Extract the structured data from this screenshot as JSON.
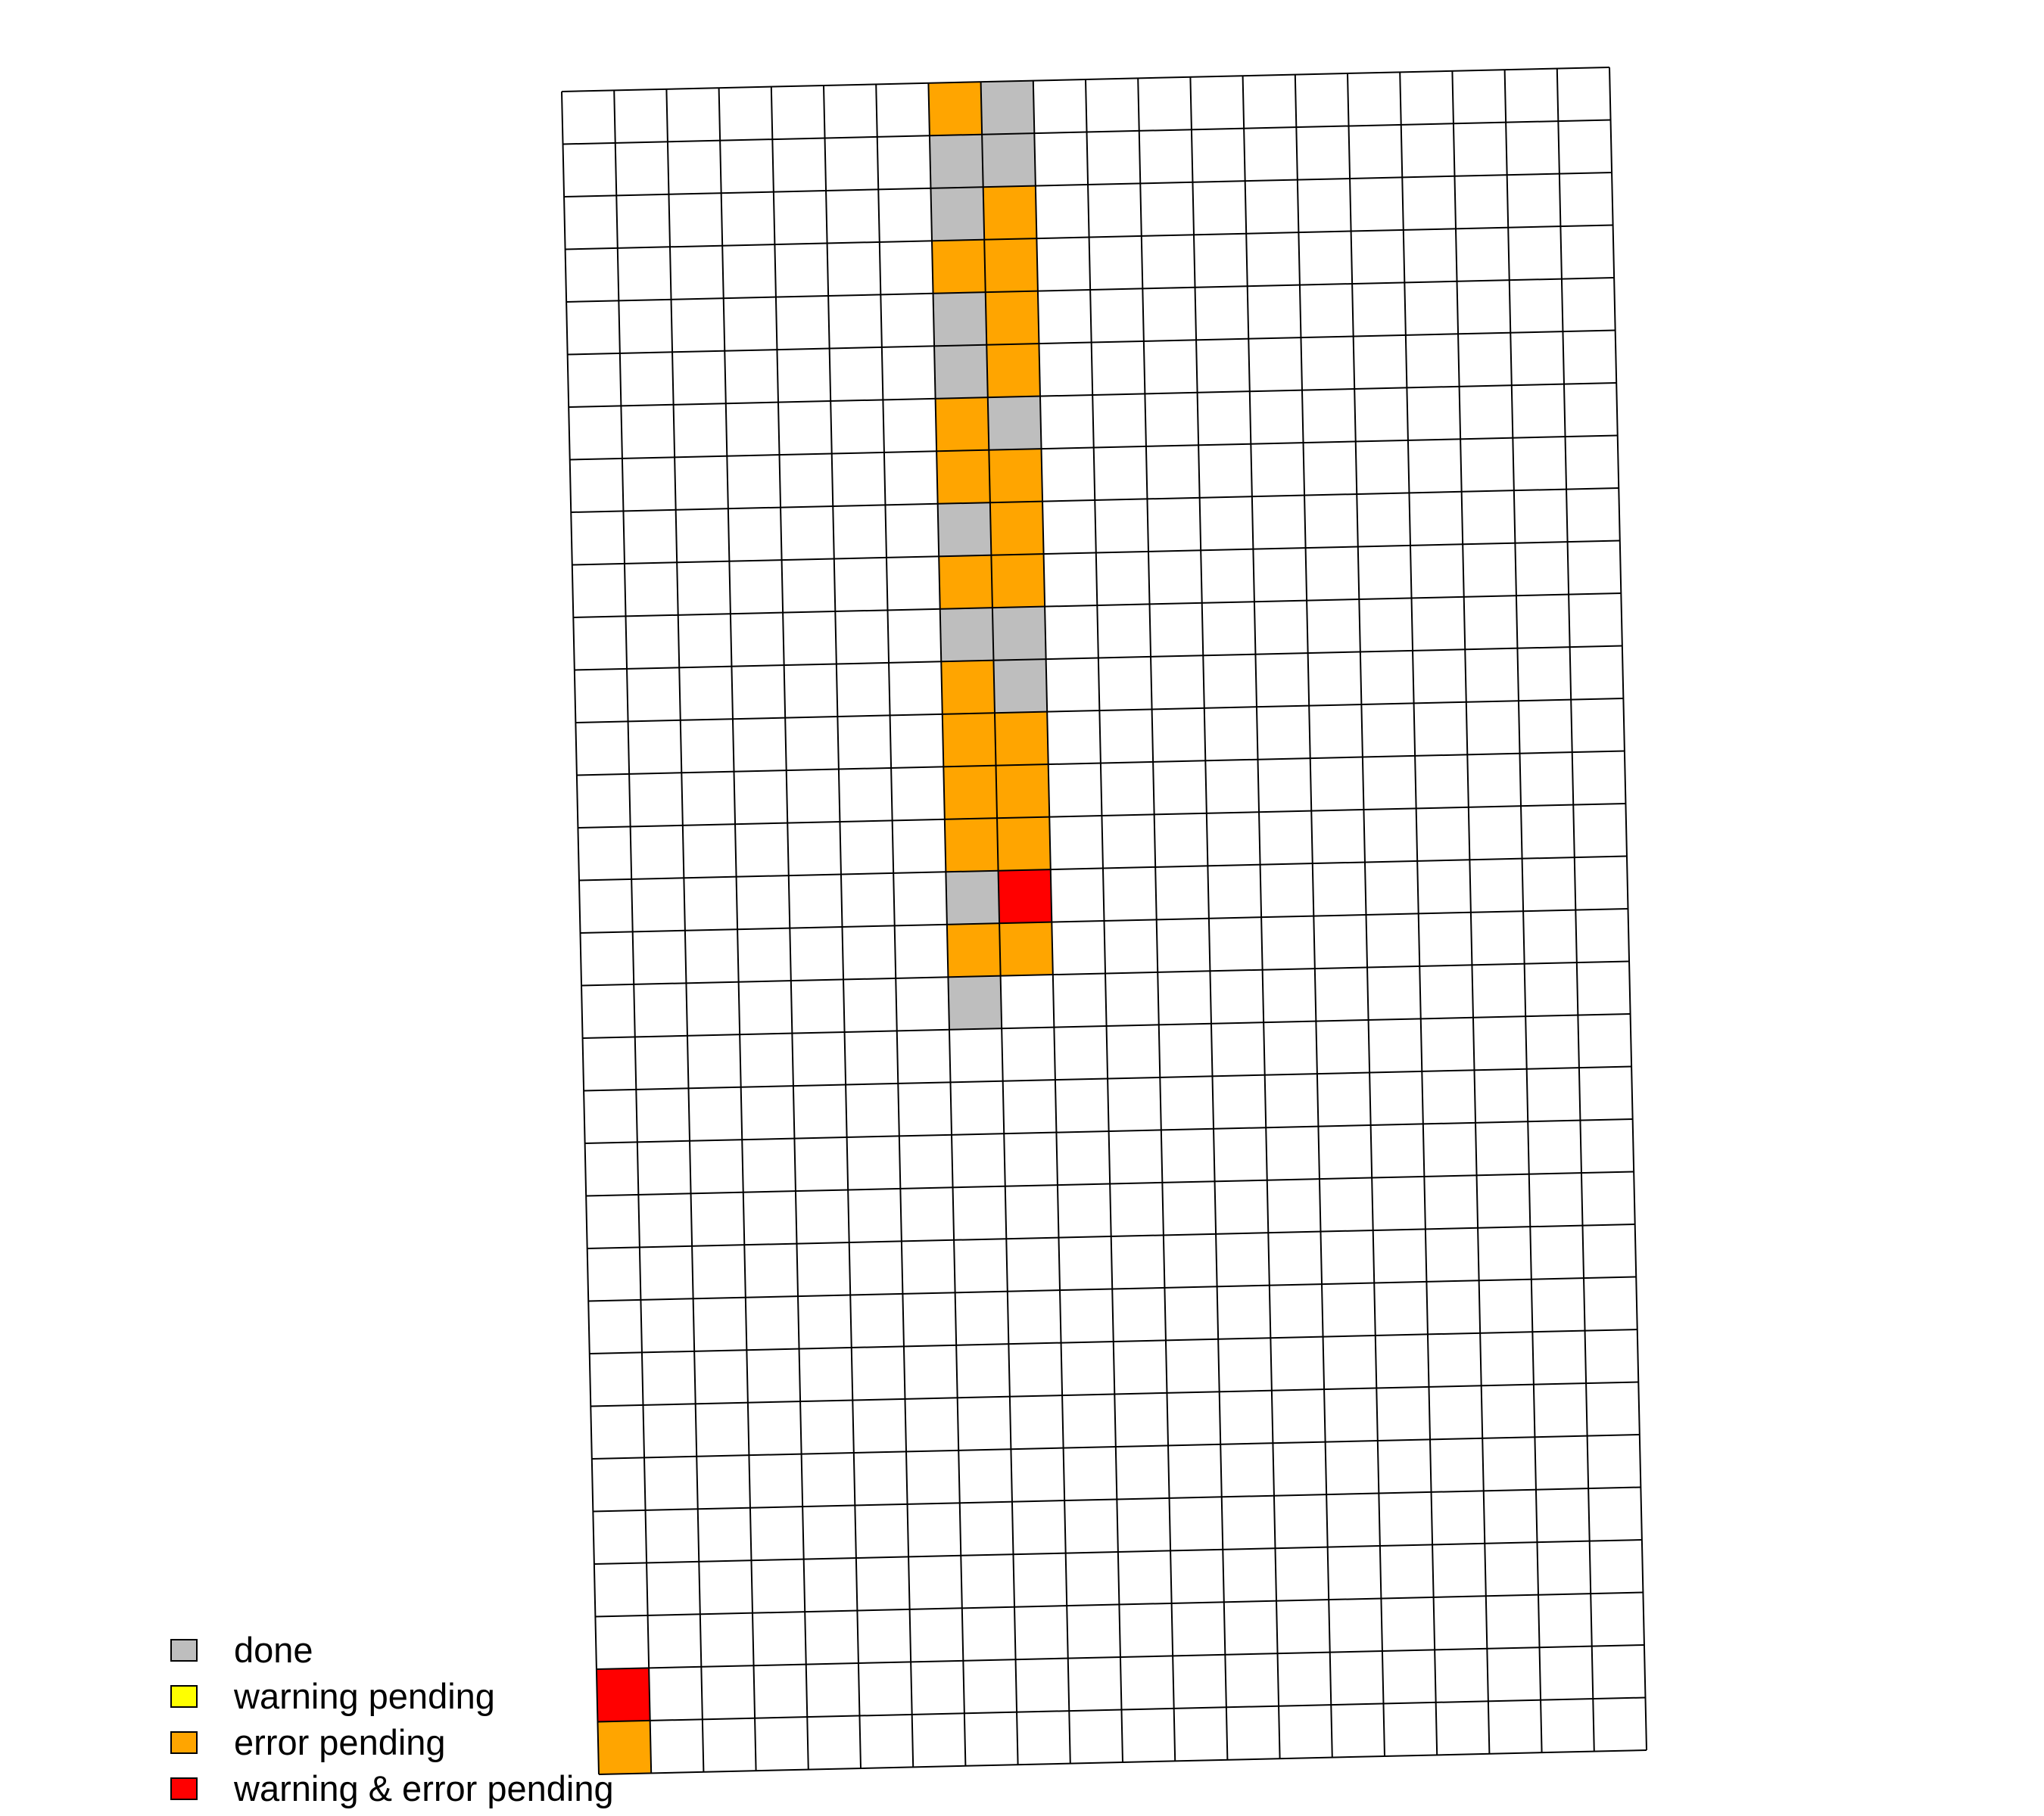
{
  "chart_data": {
    "type": "heatmap",
    "title": "",
    "n_rows": 32,
    "n_cols": 20,
    "default_color": "#FFFFFF",
    "grid": true,
    "categories": [
      {
        "key": "done",
        "label": "done",
        "color": "#BEBEBE"
      },
      {
        "key": "warning",
        "label": "warning pending",
        "color": "#FFFF00"
      },
      {
        "key": "error",
        "label": "error pending",
        "color": "#FFA500"
      },
      {
        "key": "both",
        "label": "warning & error pending",
        "color": "#FF0000"
      }
    ],
    "cells": [
      {
        "row": 1,
        "col": 8,
        "status": "error"
      },
      {
        "row": 1,
        "col": 9,
        "status": "done"
      },
      {
        "row": 2,
        "col": 8,
        "status": "done"
      },
      {
        "row": 2,
        "col": 9,
        "status": "done"
      },
      {
        "row": 3,
        "col": 8,
        "status": "done"
      },
      {
        "row": 3,
        "col": 9,
        "status": "error"
      },
      {
        "row": 4,
        "col": 8,
        "status": "error"
      },
      {
        "row": 4,
        "col": 9,
        "status": "error"
      },
      {
        "row": 5,
        "col": 8,
        "status": "done"
      },
      {
        "row": 5,
        "col": 9,
        "status": "error"
      },
      {
        "row": 6,
        "col": 8,
        "status": "done"
      },
      {
        "row": 6,
        "col": 9,
        "status": "error"
      },
      {
        "row": 7,
        "col": 8,
        "status": "error"
      },
      {
        "row": 7,
        "col": 9,
        "status": "done"
      },
      {
        "row": 8,
        "col": 8,
        "status": "error"
      },
      {
        "row": 8,
        "col": 9,
        "status": "error"
      },
      {
        "row": 9,
        "col": 8,
        "status": "done"
      },
      {
        "row": 9,
        "col": 9,
        "status": "error"
      },
      {
        "row": 10,
        "col": 8,
        "status": "error"
      },
      {
        "row": 10,
        "col": 9,
        "status": "error"
      },
      {
        "row": 11,
        "col": 8,
        "status": "done"
      },
      {
        "row": 11,
        "col": 9,
        "status": "done"
      },
      {
        "row": 12,
        "col": 8,
        "status": "error"
      },
      {
        "row": 12,
        "col": 9,
        "status": "done"
      },
      {
        "row": 13,
        "col": 8,
        "status": "error"
      },
      {
        "row": 13,
        "col": 9,
        "status": "error"
      },
      {
        "row": 14,
        "col": 8,
        "status": "error"
      },
      {
        "row": 14,
        "col": 9,
        "status": "error"
      },
      {
        "row": 15,
        "col": 8,
        "status": "error"
      },
      {
        "row": 15,
        "col": 9,
        "status": "error"
      },
      {
        "row": 16,
        "col": 8,
        "status": "done"
      },
      {
        "row": 16,
        "col": 9,
        "status": "both"
      },
      {
        "row": 17,
        "col": 8,
        "status": "error"
      },
      {
        "row": 17,
        "col": 9,
        "status": "error"
      },
      {
        "row": 18,
        "col": 8,
        "status": "done"
      },
      {
        "row": 31,
        "col": 1,
        "status": "both"
      },
      {
        "row": 32,
        "col": 1,
        "status": "error"
      }
    ]
  }
}
